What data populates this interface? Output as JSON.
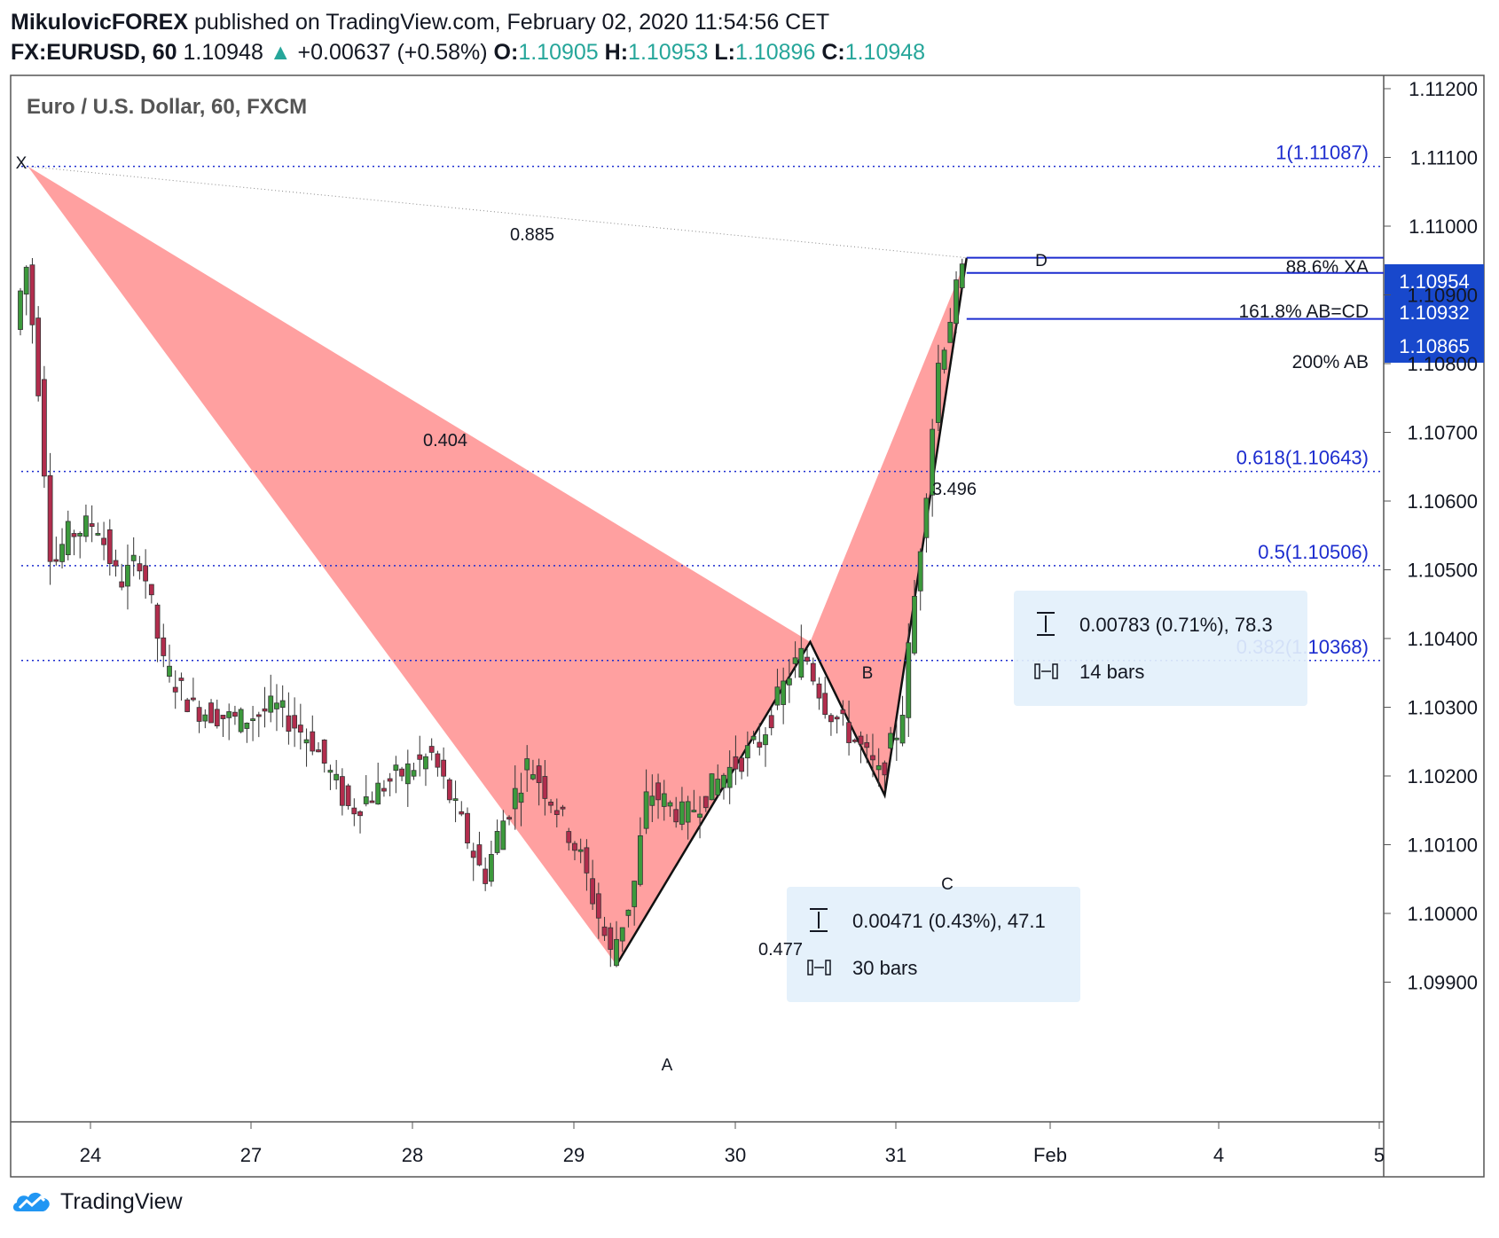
{
  "header": {
    "author": "MikulovicFOREX",
    "published": "published on TradingView.com, February 02, 2020 11:54:56 CET",
    "symbol": "FX:EURUSD, 60",
    "last": "1.10948",
    "change_arrow": "▲",
    "change": "+0.00637 (+0.58%)",
    "o_label": "O:",
    "o": "1.10905",
    "h_label": "H:",
    "h": "1.10953",
    "l_label": "L:",
    "l": "1.10896",
    "c_label": "C:",
    "c": "1.10948"
  },
  "chart_title": "Euro / U.S. Dollar, 60, FXCM",
  "colors": {
    "up": "#26a69a",
    "up_body": "#3c9a3c",
    "down": "#b22d4d",
    "pattern_fill": "#ffa0a0",
    "fib": "#1c2ccf",
    "target": "#1c2ccf",
    "label_bg": "#1848cc",
    "measure_bg": "#e3f0fb",
    "grid_text": "#131722"
  },
  "chart_data": {
    "type": "candlestick",
    "ylim": [
      1.0981,
      1.1126
    ],
    "y_ticks": [
      "1.11200",
      "1.11100",
      "1.11000",
      "1.10900",
      "1.10800",
      "1.10700",
      "1.10600",
      "1.10500",
      "1.10400",
      "1.10300",
      "1.10200",
      "1.10100",
      "1.10000",
      "1.09900"
    ],
    "x_ticks": [
      "24",
      "27",
      "28",
      "29",
      "30",
      "31",
      "Feb",
      "4",
      "5"
    ],
    "pattern": {
      "name": "XABCD",
      "points": [
        {
          "label": "X",
          "bar": 2,
          "price": 1.11087
        },
        {
          "label": "A",
          "bar": 160,
          "price": 1.09925
        },
        {
          "label": "B",
          "bar": 212,
          "price": 1.10395
        },
        {
          "label": "C",
          "bar": 232,
          "price": 1.10172
        },
        {
          "label": "D",
          "bar": 254,
          "price": 1.10954
        }
      ],
      "ratios": [
        {
          "text": "0.885"
        },
        {
          "text": "0.404"
        },
        {
          "text": "0.477"
        },
        {
          "text": "3.496"
        }
      ]
    },
    "fib_levels": [
      {
        "label": "1(1.11087)",
        "price": 1.11087
      },
      {
        "label": "0.618(1.10643)",
        "price": 1.10643
      },
      {
        "label": "0.5(1.10506)",
        "price": 1.10506
      },
      {
        "label": "0.382(1.10368)",
        "price": 1.10368
      }
    ],
    "targets": [
      {
        "label": "88.6% XA",
        "price": 1.10954,
        "tag": "1.10954"
      },
      {
        "label": "161.8% AB=CD",
        "price": 1.10932,
        "tag": "1.10932"
      },
      {
        "label": "200% AB",
        "price": 1.10865,
        "tag": "1.10865"
      }
    ],
    "measures": [
      {
        "range_text": "0.00783 (0.71%), 78.3",
        "bars_text": "14 bars"
      },
      {
        "range_text": "0.00471 (0.43%), 47.1",
        "bars_text": "30 bars"
      }
    ]
  },
  "footer": {
    "brand": "TradingView",
    "logo_icon": "tradingview-cloud-icon"
  }
}
